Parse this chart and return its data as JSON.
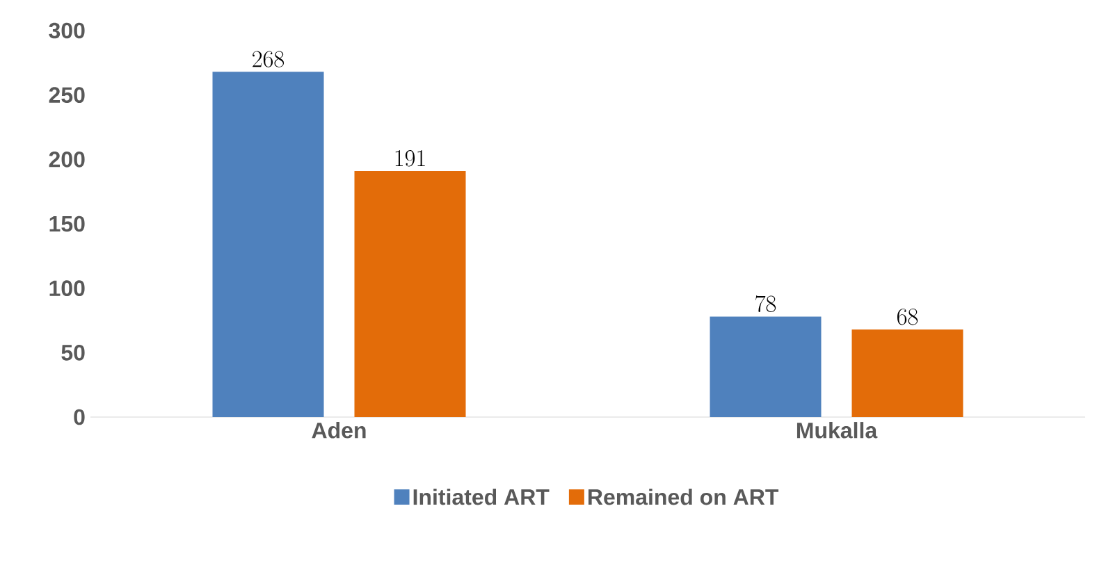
{
  "chart_data": {
    "type": "bar",
    "categories": [
      "Aden",
      "Mukalla"
    ],
    "series": [
      {
        "name": "Initiated ART",
        "color": "#4f81bd",
        "values": [
          268,
          78
        ]
      },
      {
        "name": "Remained on ART",
        "color": "#e36c09",
        "values": [
          191,
          68
        ]
      }
    ],
    "ylim": [
      0,
      300
    ],
    "yticks": [
      0,
      50,
      100,
      150,
      200,
      250,
      300
    ],
    "grid": false,
    "legend": "bottom",
    "data_labels": true
  }
}
